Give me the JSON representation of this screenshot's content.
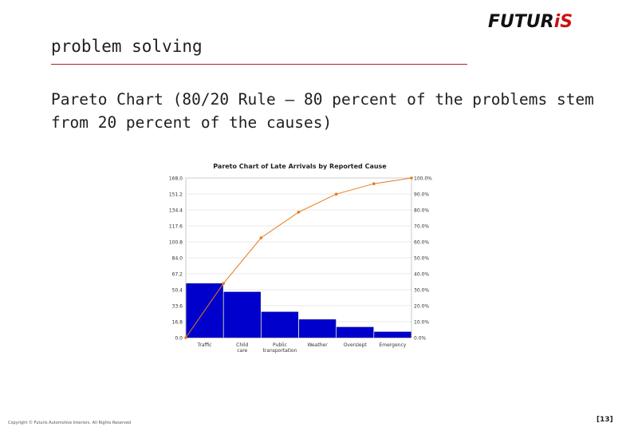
{
  "header": {
    "logo_text": "FUTURiS",
    "title": "problem solving"
  },
  "main": {
    "heading": "Pareto Chart (80/20 Rule – 80 percent of the problems stem from 20 percent of the causes)"
  },
  "colors": {
    "accent": "#cc1111",
    "rule": "#b22222",
    "bar": "#0000cc",
    "cumulative_line": "#e8791a"
  },
  "chart_data": {
    "type": "bar",
    "title": "Pareto Chart of Late Arrivals by Reported Cause",
    "categories": [
      "Traffic",
      "Child care",
      "Public transportation",
      "Weather",
      "Overslept",
      "Emergency"
    ],
    "series": [
      {
        "values": [
          57,
          48,
          27,
          19,
          11,
          6
        ]
      },
      {
        "type": "line",
        "values": [
          33.9,
          62.5,
          78.6,
          89.9,
          96.4,
          100.0
        ]
      }
    ],
    "ylim": [
      0,
      168
    ],
    "y2lim": [
      0,
      100
    ],
    "yticks": [
      "0.0",
      "16.8",
      "33.6",
      "50.4",
      "67.2",
      "84.0",
      "100.8",
      "117.6",
      "134.4",
      "151.2",
      "168.0"
    ],
    "y2ticks": [
      "0.0%",
      "10.0%",
      "20.0%",
      "30.0%",
      "40.0%",
      "50.0%",
      "60.0%",
      "70.0%",
      "80.0%",
      "90.0%",
      "100.0%"
    ],
    "grid": true,
    "xlabel": "",
    "ylabel": ""
  },
  "footer": {
    "copyright": "Copyright © Futuris Automotive Interiors. All Rights Reserved",
    "page": "[13]"
  }
}
